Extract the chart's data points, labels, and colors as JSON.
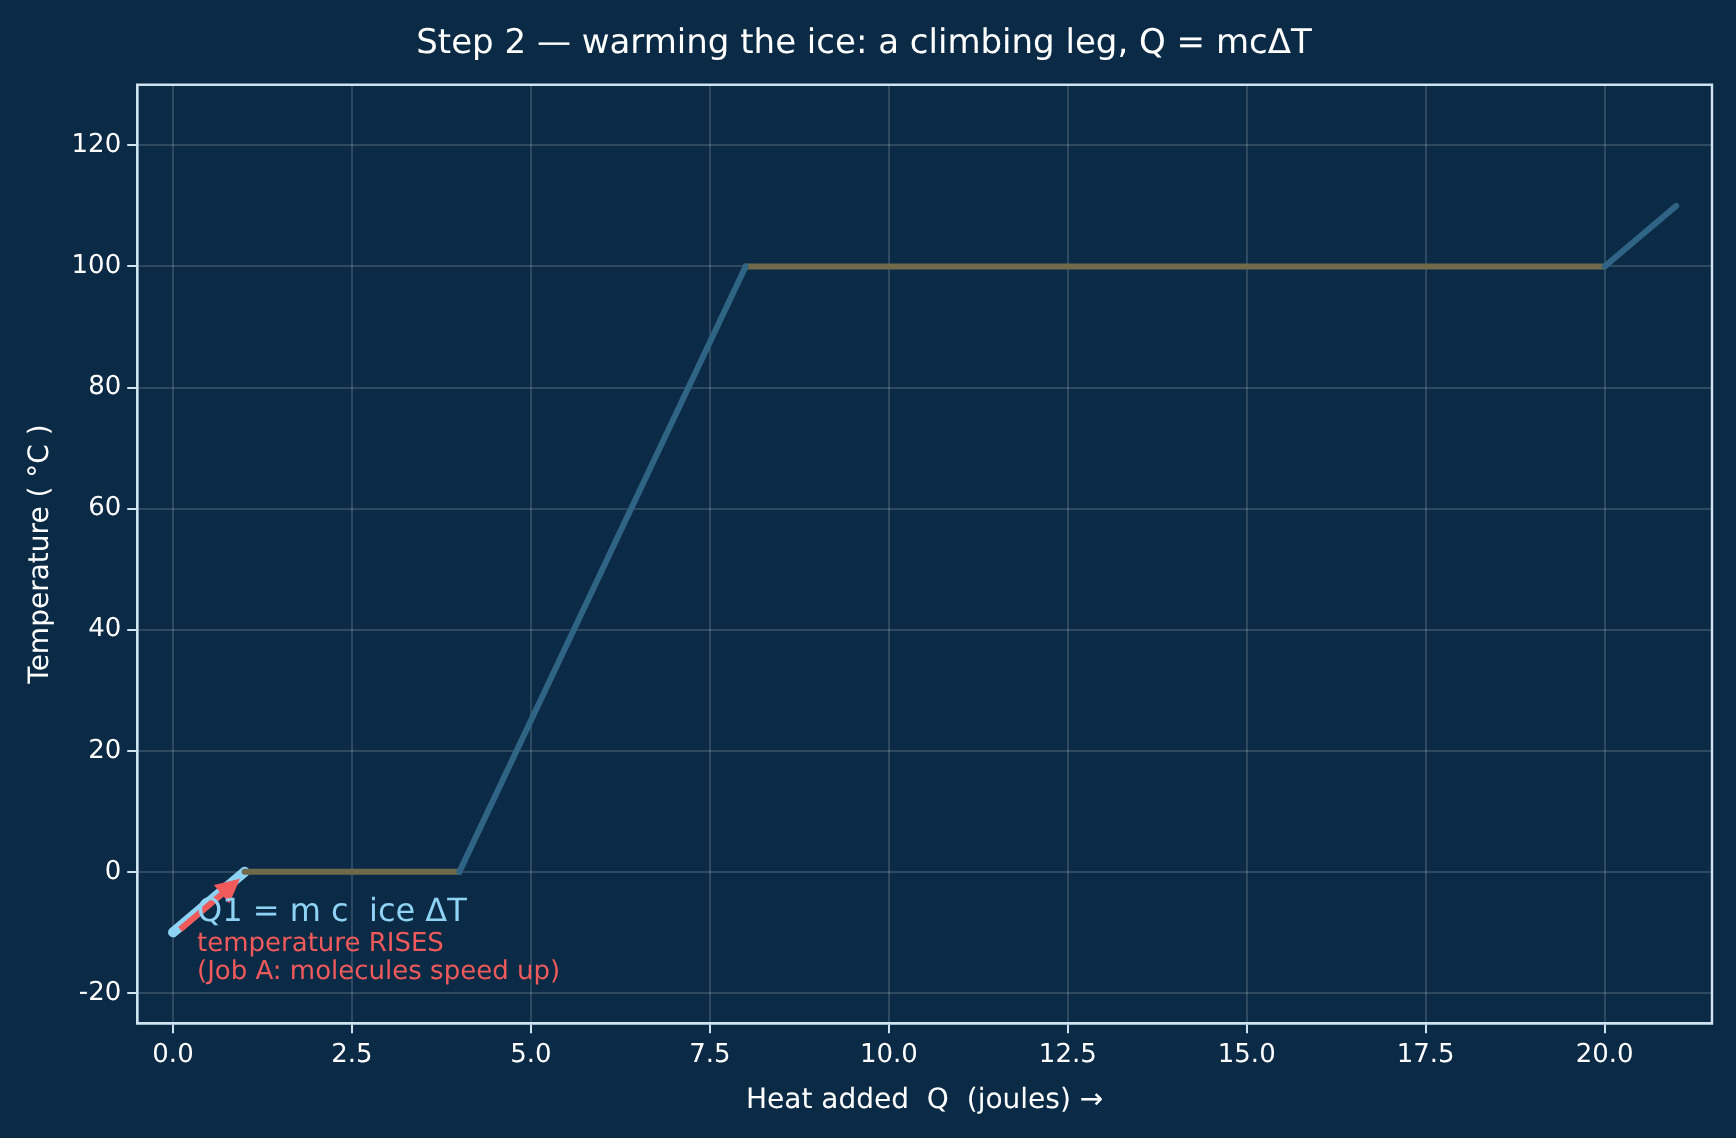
{
  "chart_data": {
    "type": "line",
    "title": "Step 2 — warming the ice: a climbing leg, Q = mcΔT",
    "xlabel": "Heat added  Q  (joules) →",
    "ylabel": "Temperature ( °C )",
    "series": [
      {
        "color": "#2f6485",
        "x": [
          4,
          8
        ],
        "values": [
          0,
          100
        ]
      },
      {
        "color": "#2f6485",
        "x": [
          20,
          21
        ],
        "values": [
          100,
          110
        ]
      },
      {
        "color": "#6e6a4a",
        "x": [
          1,
          4
        ],
        "values": [
          0,
          0
        ]
      },
      {
        "color": "#6e6a4a",
        "x": [
          8,
          20
        ],
        "values": [
          100,
          100
        ]
      },
      {
        "color": "#8fd3f4",
        "x": [
          0,
          1
        ],
        "values": [
          -10,
          0
        ]
      }
    ],
    "xlim": [
      -0.5,
      21.5
    ],
    "ylim": [
      -25,
      130
    ],
    "xticks": [
      {
        "value": 0,
        "label": "0.0"
      },
      {
        "value": 2.5,
        "label": "2.5"
      },
      {
        "value": 5,
        "label": "5.0"
      },
      {
        "value": 7.5,
        "label": "7.5"
      },
      {
        "value": 10,
        "label": "10.0"
      },
      {
        "value": 12.5,
        "label": "12.5"
      },
      {
        "value": 15,
        "label": "15.0"
      },
      {
        "value": 17.5,
        "label": "17.5"
      },
      {
        "value": 20,
        "label": "20.0"
      }
    ],
    "yticks": [
      -20,
      0,
      20,
      40,
      60,
      80,
      100,
      120
    ],
    "annotations": [
      "Q1 = m c  ice ΔT",
      "temperature RISES",
      "(Job A: molecules speed up)"
    ],
    "grid": true,
    "marker": "none"
  }
}
